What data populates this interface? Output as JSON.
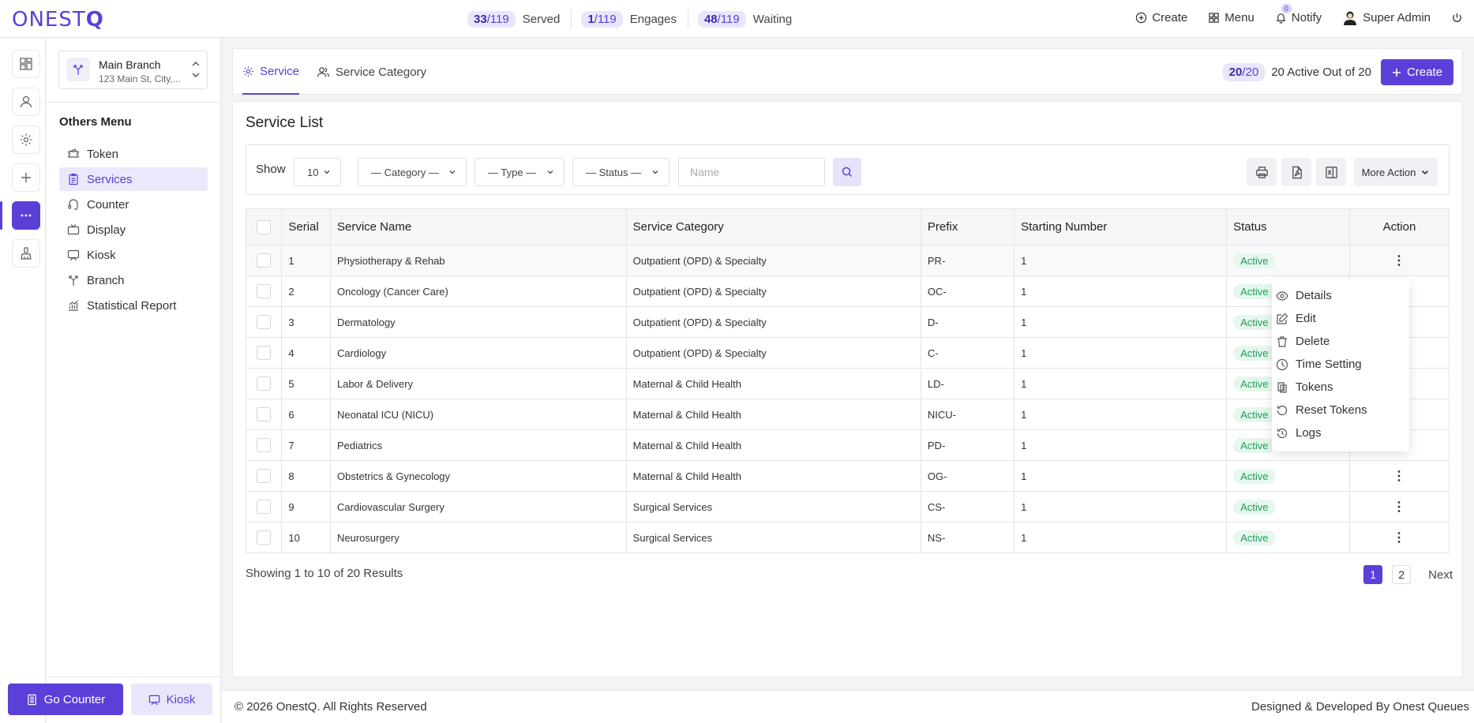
{
  "app": {
    "logo": "ONESTQ"
  },
  "topbar": {
    "stats": [
      {
        "value": "33",
        "total": "/119",
        "label": "Served"
      },
      {
        "value": "1",
        "total": "/119",
        "label": "Engages"
      },
      {
        "value": "48",
        "total": "/119",
        "label": "Waiting"
      }
    ],
    "create_label": "Create",
    "menu_label": "Menu",
    "notify_label": "Notify",
    "notify_count": "0",
    "user_name": "Super Admin"
  },
  "sidebar": {
    "branch_name": "Main Branch",
    "branch_address": "123 Main St, City,...",
    "section_title": "Others Menu",
    "items": [
      {
        "label": "Token",
        "icon": "ticket-icon"
      },
      {
        "label": "Services",
        "icon": "clipboard-icon",
        "active": true
      },
      {
        "label": "Counter",
        "icon": "headset-icon"
      },
      {
        "label": "Display",
        "icon": "tv-icon"
      },
      {
        "label": "Kiosk",
        "icon": "cast-icon"
      },
      {
        "label": "Branch",
        "icon": "fork-icon"
      },
      {
        "label": "Statistical Report",
        "icon": "chart-icon"
      }
    ],
    "go_counter_label": "Go Counter",
    "kiosk_label": "Kiosk"
  },
  "tabs": {
    "items": [
      {
        "label": "Service",
        "active": true
      },
      {
        "label": "Service Category",
        "active": false
      }
    ],
    "count_value": "20",
    "count_total": "/20",
    "count_text": "20 Active Out of 20",
    "create_label": "Create"
  },
  "list": {
    "title": "Service List",
    "show_label": "Show",
    "page_size": "10",
    "filters": {
      "category": "— Category —",
      "type": "— Type —",
      "status": "— Status —",
      "name_placeholder": "Name"
    },
    "more_action_label": "More Action",
    "columns": [
      "Serial",
      "Service Name",
      "Service Category",
      "Prefix",
      "Starting Number",
      "Status",
      "Action"
    ],
    "rows": [
      {
        "serial": "1",
        "name": "Physiotherapy & Rehab",
        "category": "Outpatient (OPD) & Specialty",
        "prefix": "PR-",
        "start": "1",
        "status": "Active"
      },
      {
        "serial": "2",
        "name": "Oncology (Cancer Care)",
        "category": "Outpatient (OPD) & Specialty",
        "prefix": "OC-",
        "start": "1",
        "status": "Active"
      },
      {
        "serial": "3",
        "name": "Dermatology",
        "category": "Outpatient (OPD) & Specialty",
        "prefix": "D-",
        "start": "1",
        "status": "Active"
      },
      {
        "serial": "4",
        "name": "Cardiology",
        "category": "Outpatient (OPD) & Specialty",
        "prefix": "C-",
        "start": "1",
        "status": "Active"
      },
      {
        "serial": "5",
        "name": "Labor & Delivery",
        "category": "Maternal & Child Health",
        "prefix": "LD-",
        "start": "1",
        "status": "Active"
      },
      {
        "serial": "6",
        "name": "Neonatal ICU (NICU)",
        "category": "Maternal & Child Health",
        "prefix": "NICU-",
        "start": "1",
        "status": "Active"
      },
      {
        "serial": "7",
        "name": "Pediatrics",
        "category": "Maternal & Child Health",
        "prefix": "PD-",
        "start": "1",
        "status": "Active"
      },
      {
        "serial": "8",
        "name": "Obstetrics & Gynecology",
        "category": "Maternal & Child Health",
        "prefix": "OG-",
        "start": "1",
        "status": "Active"
      },
      {
        "serial": "9",
        "name": "Cardiovascular Surgery",
        "category": "Surgical Services",
        "prefix": "CS-",
        "start": "1",
        "status": "Active"
      },
      {
        "serial": "10",
        "name": "Neurosurgery",
        "category": "Surgical Services",
        "prefix": "NS-",
        "start": "1",
        "status": "Active"
      }
    ],
    "action_menu": [
      {
        "label": "Details",
        "icon": "eye-icon"
      },
      {
        "label": "Edit",
        "icon": "edit-icon"
      },
      {
        "label": "Delete",
        "icon": "trash-icon"
      },
      {
        "label": "Time Setting",
        "icon": "clock-icon"
      },
      {
        "label": "Tokens",
        "icon": "tokens-icon"
      },
      {
        "label": "Reset Tokens",
        "icon": "reset-icon"
      },
      {
        "label": "Logs",
        "icon": "history-icon"
      }
    ],
    "showing_text": "Showing 1 to 10 of 20 Results",
    "pages": [
      "1",
      "2"
    ],
    "next_label": "Next"
  },
  "footer": {
    "copyright": "© 2026 OnestQ. All Rights Reserved",
    "credit": "Designed & Developed By Onest Queues"
  },
  "colors": {
    "accent": "#5b3fd8",
    "accent_light": "#e9e6fb",
    "success": "#1f9d5a",
    "success_bg": "#e5f7ee"
  }
}
